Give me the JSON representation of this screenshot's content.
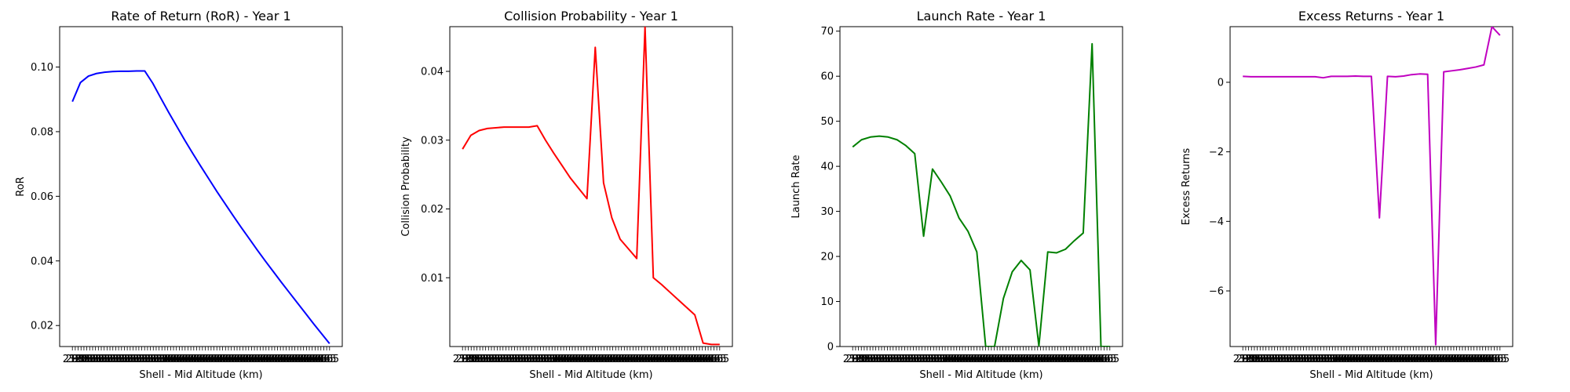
{
  "figure": {
    "background": "#ffffff"
  },
  "chart_data": [
    {
      "type": "line",
      "title": "Rate of Return (RoR) - Year 1",
      "xlabel": "Shell - Mid Altitude (km)",
      "ylabel": "RoR",
      "color": "#0000ff",
      "ylim": [
        0.0135,
        0.1125
      ],
      "yticks": [
        0.02,
        0.04,
        0.06,
        0.08,
        0.1
      ],
      "ytick_labels": [
        "0.02",
        "0.04",
        "0.06",
        "0.08",
        "0.10"
      ],
      "values": [
        0.0893,
        0.0952,
        0.0972,
        0.098,
        0.0984,
        0.0986,
        0.0987,
        0.0987,
        0.0988,
        0.0988,
        0.095,
        0.0904,
        0.0859,
        0.0816,
        0.0773,
        0.0732,
        0.0692,
        0.0653,
        0.0614,
        0.0577,
        0.054,
        0.0504,
        0.0469,
        0.0434,
        0.04,
        0.0367,
        0.0334,
        0.0302,
        0.027,
        0.0238,
        0.0206,
        0.0175,
        0.0144
      ],
      "grid": false
    },
    {
      "type": "line",
      "title": "Collision Probability - Year 1",
      "xlabel": "Shell - Mid Altitude (km)",
      "ylabel": "Collision Probability",
      "color": "#ff0000",
      "ylim": [
        0.0,
        0.0465
      ],
      "yticks": [
        0.01,
        0.02,
        0.03,
        0.04
      ],
      "ytick_labels": [
        "0.01",
        "0.02",
        "0.03",
        "0.04"
      ],
      "values": [
        0.0287,
        0.0307,
        0.0314,
        0.0317,
        0.0318,
        0.0319,
        0.0319,
        0.0319,
        0.0319,
        0.0321,
        0.03,
        0.0281,
        0.0263,
        0.0245,
        0.023,
        0.0215,
        0.0435,
        0.0238,
        0.0187,
        0.0156,
        0.0142,
        0.0128,
        0.0465,
        0.01,
        0.009,
        0.0079,
        0.0068,
        0.0057,
        0.0046,
        0.0005,
        0.0003,
        0.0003
      ],
      "grid": false
    },
    {
      "type": "line",
      "title": "Launch Rate - Year 1",
      "xlabel": "Shell - Mid Altitude (km)",
      "ylabel": "Launch Rate",
      "color": "#008000",
      "ylim": [
        0,
        71
      ],
      "yticks": [
        0,
        10,
        20,
        30,
        40,
        50,
        60,
        70
      ],
      "ytick_labels": [
        "0",
        "10",
        "20",
        "30",
        "40",
        "50",
        "60",
        "70"
      ],
      "values": [
        44.3,
        45.9,
        46.5,
        46.7,
        46.5,
        45.9,
        44.6,
        42.8,
        24.5,
        39.4,
        36.5,
        33.4,
        28.5,
        25.6,
        21.0,
        0.0,
        0.0,
        10.7,
        16.6,
        19.1,
        17.0,
        0.1,
        21.0,
        20.8,
        21.6,
        23.5,
        25.2,
        67.2,
        0.0,
        0.0
      ],
      "grid": false
    },
    {
      "type": "line",
      "title": "Excess Returns - Year 1",
      "xlabel": "Shell - Mid Altitude (km)",
      "ylabel": "Excess Returns",
      "color": "#c000c0",
      "ylim": [
        -7.6,
        1.6
      ],
      "yticks": [
        -6,
        -4,
        -2,
        0
      ],
      "ytick_labels": [
        "−6",
        "−4",
        "−2",
        "0"
      ],
      "values": [
        0.17,
        0.16,
        0.16,
        0.16,
        0.16,
        0.16,
        0.16,
        0.16,
        0.16,
        0.16,
        0.13,
        0.17,
        0.17,
        0.17,
        0.18,
        0.17,
        0.17,
        -3.9,
        0.17,
        0.16,
        0.18,
        0.22,
        0.24,
        0.23,
        -7.55,
        0.3,
        0.33,
        0.36,
        0.4,
        0.44,
        0.5,
        1.62,
        1.35
      ],
      "grid": false
    }
  ],
  "xticks": {
    "first_label": "218",
    "labels": [
      "218",
      "293",
      "320",
      "365",
      "365",
      "365",
      "365",
      "365",
      "365",
      "365",
      "365",
      "365",
      "365",
      "365",
      "365",
      "365",
      "365",
      "365",
      "365",
      "365",
      "365",
      "365",
      "365",
      "365",
      "365",
      "365",
      "365",
      "365",
      "365",
      "365",
      "365",
      "365",
      "365",
      "365",
      "365",
      "665",
      "665",
      "665",
      "665",
      "665",
      "665",
      "665",
      "665",
      "665",
      "665",
      "665",
      "665",
      "665",
      "665",
      "665",
      "665",
      "665",
      "665",
      "665",
      "665",
      "665",
      "665",
      "665",
      "665",
      "665",
      "665",
      "665",
      "665",
      "665",
      "665",
      "665",
      "665",
      "665",
      "665",
      "665",
      "665",
      "665",
      "665",
      "665",
      "665",
      "665",
      "665",
      "665",
      "665",
      "665",
      "665",
      "665",
      "665",
      "665",
      "665",
      "665",
      "665",
      "665",
      "665",
      "665"
    ]
  }
}
